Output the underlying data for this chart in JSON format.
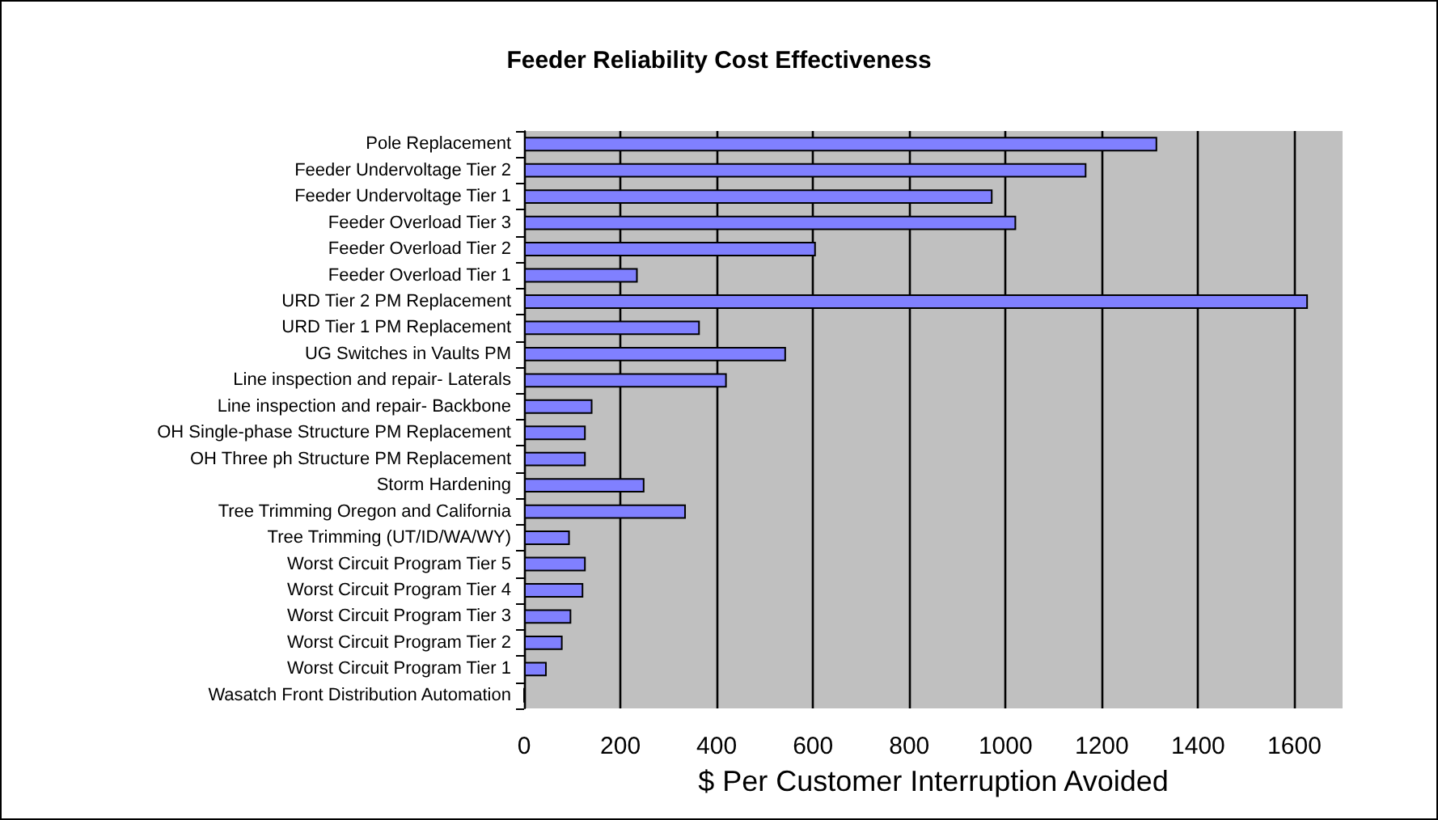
{
  "chart_data": {
    "type": "bar",
    "orientation": "horizontal",
    "title": "Feeder Reliability Cost Effectiveness",
    "xlabel": "$ Per Customer Interruption Avoided",
    "categories": [
      "Pole Replacement",
      "Feeder Undervoltage Tier 2",
      "Feeder Undervoltage Tier 1",
      "Feeder Overload Tier 3",
      "Feeder Overload Tier 2",
      "Feeder Overload Tier 1",
      "URD Tier 2 PM Replacement",
      "URD Tier 1 PM Replacement",
      "UG Switches in Vaults PM",
      "Line inspection and repair- Laterals",
      "Line inspection and repair- Backbone",
      "OH Single-phase Structure PM Replacement",
      "OH Three ph Structure PM Replacement",
      "Storm Hardening",
      "Tree Trimming Oregon and California",
      "Tree Trimming (UT/ID/WA/WY)",
      "Worst Circuit Program Tier 5",
      "Worst Circuit Program Tier 4",
      "Worst Circuit Program Tier 3",
      "Worst Circuit Program Tier 2",
      "Worst Circuit Program Tier 1",
      "Wasatch Front Distribution Automation"
    ],
    "values": [
      1315,
      1168,
      973,
      1022,
      606,
      236,
      1628,
      365,
      544,
      421,
      142,
      128,
      128,
      250,
      336,
      95,
      128,
      123,
      98,
      80,
      47,
      0
    ],
    "color": "#8080ff",
    "xlim": [
      0,
      1700
    ],
    "xticks": [
      0,
      200,
      400,
      600,
      800,
      1000,
      1200,
      1400,
      1600
    ],
    "grid": "x"
  }
}
